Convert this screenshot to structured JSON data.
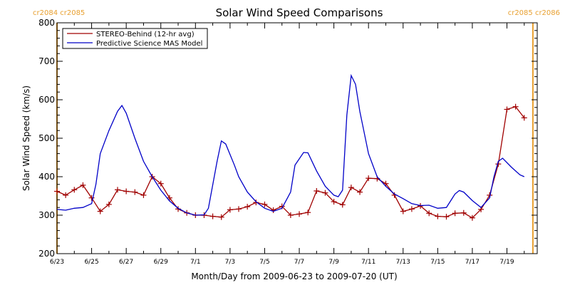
{
  "chart_data": {
    "type": "line",
    "title": "Solar Wind Speed Comparisons",
    "xlabel": "Month/Day from 2009-06-23 to 2009-07-20 (UT)",
    "ylabel": "Solar Wind Speed (km/s)",
    "xlim": [
      "2009-06-23",
      "2009-07-20 18:00"
    ],
    "ylim": [
      200,
      800
    ],
    "yticks": [
      200,
      300,
      400,
      500,
      600,
      700,
      800
    ],
    "xticks": [
      {
        "date": "2009-06-23",
        "label": "6/23"
      },
      {
        "date": "2009-06-25",
        "label": "6/25"
      },
      {
        "date": "2009-06-27",
        "label": "6/27"
      },
      {
        "date": "2009-06-29",
        "label": "6/29"
      },
      {
        "date": "2009-07-01",
        "label": "7/1"
      },
      {
        "date": "2009-07-03",
        "label": "7/3"
      },
      {
        "date": "2009-07-05",
        "label": "7/5"
      },
      {
        "date": "2009-07-07",
        "label": "7/7"
      },
      {
        "date": "2009-07-09",
        "label": "7/9"
      },
      {
        "date": "2009-07-11",
        "label": "7/11"
      },
      {
        "date": "2009-07-13",
        "label": "7/13"
      },
      {
        "date": "2009-07-15",
        "label": "7/15"
      },
      {
        "date": "2009-07-17",
        "label": "7/17"
      },
      {
        "date": "2009-07-19",
        "label": "7/19"
      }
    ],
    "carrington_markers": [
      {
        "date": "2009-06-23",
        "label": "cr2084 cr2085",
        "anchor": "left"
      },
      {
        "date": "2009-07-20 12:00",
        "label": "cr2085 cr2086",
        "anchor": "right"
      }
    ],
    "legend_position": "top-left",
    "series": [
      {
        "name": "STEREO-Behind (12-hr avg)",
        "color": "#a00000",
        "markers": "plus",
        "points": [
          [
            "2009-06-23 00:00",
            362
          ],
          [
            "2009-06-23 12:00",
            352
          ],
          [
            "2009-06-24 00:00",
            366
          ],
          [
            "2009-06-24 12:00",
            378
          ],
          [
            "2009-06-25 00:00",
            345
          ],
          [
            "2009-06-25 12:00",
            310
          ],
          [
            "2009-06-26 00:00",
            328
          ],
          [
            "2009-06-26 12:00",
            366
          ],
          [
            "2009-06-27 00:00",
            362
          ],
          [
            "2009-06-27 12:00",
            360
          ],
          [
            "2009-06-28 00:00",
            352
          ],
          [
            "2009-06-28 12:00",
            400
          ],
          [
            "2009-06-29 00:00",
            382
          ],
          [
            "2009-06-29 12:00",
            345
          ],
          [
            "2009-06-30 00:00",
            316
          ],
          [
            "2009-06-30 12:00",
            306
          ],
          [
            "2009-07-01 00:00",
            300
          ],
          [
            "2009-07-01 12:00",
            300
          ],
          [
            "2009-07-02 00:00",
            297
          ],
          [
            "2009-07-02 12:00",
            295
          ],
          [
            "2009-07-03 00:00",
            314
          ],
          [
            "2009-07-03 12:00",
            316
          ],
          [
            "2009-07-04 00:00",
            322
          ],
          [
            "2009-07-04 12:00",
            333
          ],
          [
            "2009-07-05 00:00",
            328
          ],
          [
            "2009-07-05 12:00",
            313
          ],
          [
            "2009-07-06 00:00",
            323
          ],
          [
            "2009-07-06 12:00",
            300
          ],
          [
            "2009-07-07 00:00",
            303
          ],
          [
            "2009-07-07 12:00",
            307
          ],
          [
            "2009-07-08 00:00",
            363
          ],
          [
            "2009-07-08 12:00",
            358
          ],
          [
            "2009-07-09 00:00",
            335
          ],
          [
            "2009-07-09 12:00",
            327
          ],
          [
            "2009-07-10 00:00",
            372
          ],
          [
            "2009-07-10 12:00",
            360
          ],
          [
            "2009-07-11 00:00",
            396
          ],
          [
            "2009-07-11 12:00",
            395
          ],
          [
            "2009-07-12 00:00",
            382
          ],
          [
            "2009-07-12 12:00",
            352
          ],
          [
            "2009-07-13 00:00",
            310
          ],
          [
            "2009-07-13 12:00",
            316
          ],
          [
            "2009-07-14 00:00",
            324
          ],
          [
            "2009-07-14 12:00",
            305
          ],
          [
            "2009-07-15 00:00",
            297
          ],
          [
            "2009-07-15 12:00",
            296
          ],
          [
            "2009-07-16 00:00",
            305
          ],
          [
            "2009-07-16 12:00",
            306
          ],
          [
            "2009-07-17 00:00",
            293
          ],
          [
            "2009-07-17 12:00",
            315
          ],
          [
            "2009-07-18 00:00",
            352
          ],
          [
            "2009-07-18 12:00",
            433
          ],
          [
            "2009-07-19 00:00",
            575
          ],
          [
            "2009-07-19 12:00",
            582
          ],
          [
            "2009-07-20 00:00",
            553
          ]
        ]
      },
      {
        "name": "Predictive Science MAS Model",
        "color": "#0000c8",
        "markers": "none",
        "points": [
          [
            "2009-06-23 00:00",
            315
          ],
          [
            "2009-06-23 12:00",
            313
          ],
          [
            "2009-06-24 00:00",
            318
          ],
          [
            "2009-06-24 12:00",
            320
          ],
          [
            "2009-06-25 00:00",
            330
          ],
          [
            "2009-06-25 06:00",
            380
          ],
          [
            "2009-06-25 12:00",
            460
          ],
          [
            "2009-06-26 00:00",
            520
          ],
          [
            "2009-06-26 12:00",
            570
          ],
          [
            "2009-06-26 18:00",
            585
          ],
          [
            "2009-06-27 00:00",
            565
          ],
          [
            "2009-06-27 12:00",
            500
          ],
          [
            "2009-06-28 00:00",
            440
          ],
          [
            "2009-06-28 12:00",
            400
          ],
          [
            "2009-06-29 00:00",
            365
          ],
          [
            "2009-06-29 12:00",
            337
          ],
          [
            "2009-06-30 00:00",
            318
          ],
          [
            "2009-06-30 12:00",
            306
          ],
          [
            "2009-07-01 00:00",
            300
          ],
          [
            "2009-07-01 12:00",
            301
          ],
          [
            "2009-07-01 18:00",
            318
          ],
          [
            "2009-07-02 06:00",
            440
          ],
          [
            "2009-07-02 12:00",
            493
          ],
          [
            "2009-07-02 18:00",
            485
          ],
          [
            "2009-07-03 06:00",
            430
          ],
          [
            "2009-07-03 12:00",
            400
          ],
          [
            "2009-07-04 00:00",
            360
          ],
          [
            "2009-07-04 12:00",
            335
          ],
          [
            "2009-07-05 00:00",
            318
          ],
          [
            "2009-07-05 12:00",
            310
          ],
          [
            "2009-07-06 00:00",
            318
          ],
          [
            "2009-07-06 12:00",
            360
          ],
          [
            "2009-07-06 18:00",
            430
          ],
          [
            "2009-07-07 06:00",
            463
          ],
          [
            "2009-07-07 12:00",
            462
          ],
          [
            "2009-07-08 00:00",
            415
          ],
          [
            "2009-07-08 12:00",
            375
          ],
          [
            "2009-07-09 00:00",
            352
          ],
          [
            "2009-07-09 06:00",
            348
          ],
          [
            "2009-07-09 12:00",
            365
          ],
          [
            "2009-07-09 18:00",
            560
          ],
          [
            "2009-07-10 00:00",
            663
          ],
          [
            "2009-07-10 06:00",
            640
          ],
          [
            "2009-07-10 12:00",
            570
          ],
          [
            "2009-07-11 00:00",
            460
          ],
          [
            "2009-07-11 12:00",
            400
          ],
          [
            "2009-07-12 00:00",
            375
          ],
          [
            "2009-07-12 12:00",
            355
          ],
          [
            "2009-07-13 00:00",
            343
          ],
          [
            "2009-07-13 12:00",
            330
          ],
          [
            "2009-07-14 00:00",
            325
          ],
          [
            "2009-07-14 12:00",
            326
          ],
          [
            "2009-07-15 00:00",
            318
          ],
          [
            "2009-07-15 12:00",
            320
          ],
          [
            "2009-07-16 00:00",
            355
          ],
          [
            "2009-07-16 06:00",
            364
          ],
          [
            "2009-07-16 12:00",
            360
          ],
          [
            "2009-07-17 00:00",
            338
          ],
          [
            "2009-07-17 12:00",
            320
          ],
          [
            "2009-07-18 00:00",
            345
          ],
          [
            "2009-07-18 06:00",
            400
          ],
          [
            "2009-07-18 12:00",
            440
          ],
          [
            "2009-07-18 18:00",
            448
          ],
          [
            "2009-07-19 06:00",
            425
          ],
          [
            "2009-07-19 18:00",
            405
          ],
          [
            "2009-07-20 00:00",
            400
          ]
        ]
      }
    ]
  }
}
